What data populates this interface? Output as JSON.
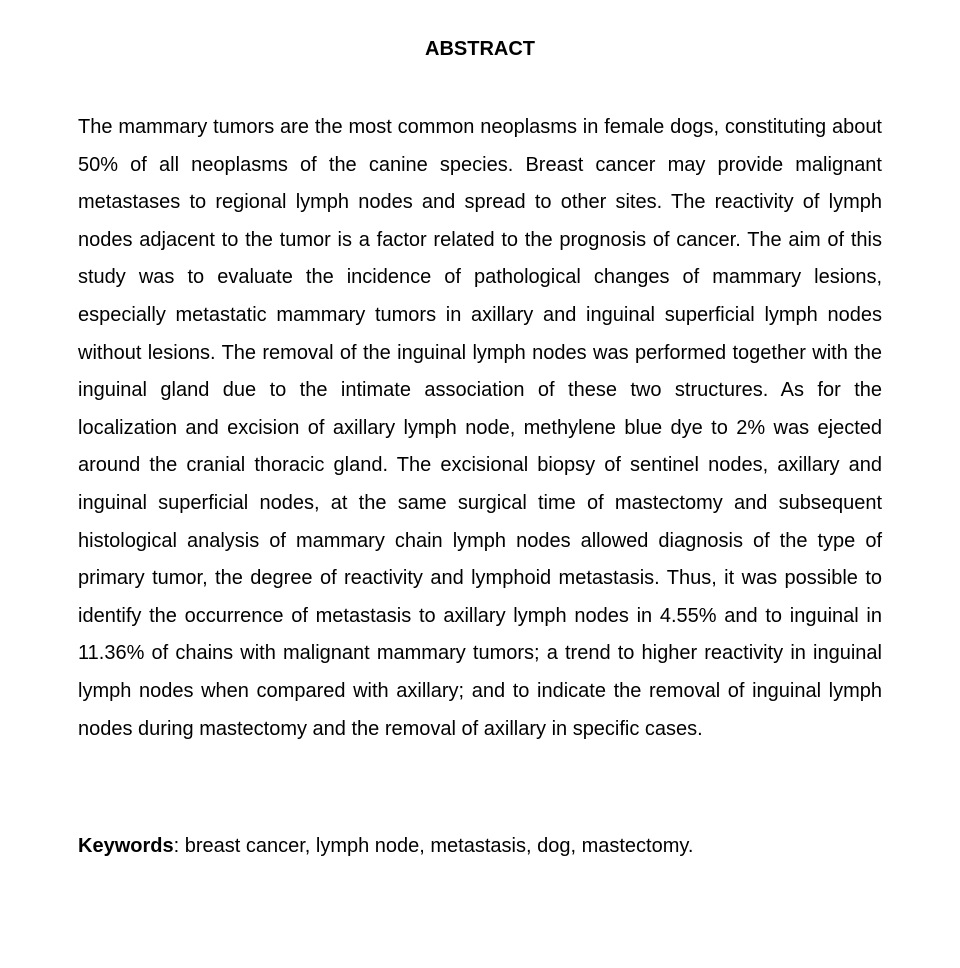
{
  "heading": "ABSTRACT",
  "body": "The mammary tumors are the most common neoplasms in female dogs, constituting about 50% of all neoplasms of the canine species. Breast cancer may provide malignant metastases to regional lymph nodes and spread to other sites. The reactivity of lymph nodes adjacent to the tumor is a factor related to the prognosis of cancer. The aim of this study was to evaluate the incidence of pathological changes of mammary lesions, especially metastatic mammary tumors in axillary and inguinal superficial lymph nodes without lesions. The removal of the inguinal lymph nodes was performed together with the inguinal gland due to the intimate association of these two structures. As for the localization and excision of axillary lymph node, methylene blue dye to 2% was ejected around the cranial thoracic gland. The excisional biopsy of sentinel nodes, axillary and inguinal superficial nodes, at the same surgical time of mastectomy and subsequent histological analysis of mammary chain lymph nodes allowed diagnosis of the type of primary tumor, the degree of reactivity and lymphoid metastasis. Thus, it was possible to identify the occurrence of metastasis to axillary lymph nodes in 4.55% and to inguinal in 11.36% of chains with malignant mammary tumors; a trend to higher reactivity in inguinal lymph nodes when compared with axillary; and to indicate the removal of inguinal lymph nodes during mastectomy and the removal of axillary in specific cases.",
  "keywords_label": "Keywords",
  "keywords_text": ": breast cancer, lymph node, metastasis, dog, mastectomy."
}
